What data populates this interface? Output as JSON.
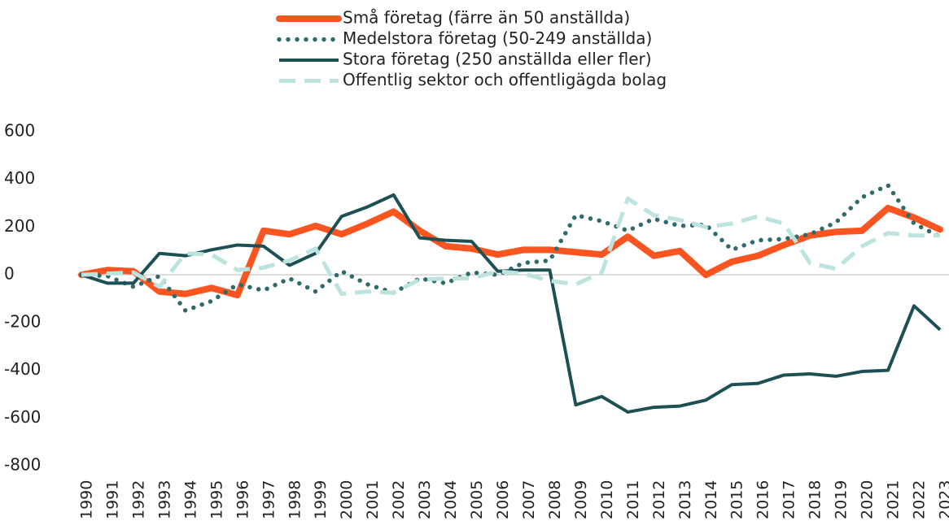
{
  "chart_data": {
    "type": "line",
    "categories": [
      "1990",
      "1991",
      "1992",
      "1993",
      "1994",
      "1995",
      "1996",
      "1997",
      "1998",
      "1999",
      "2000",
      "2001",
      "2002",
      "2003",
      "2004",
      "2005",
      "2006",
      "2007",
      "2008",
      "2009",
      "2010",
      "2011",
      "2012",
      "2013",
      "2014",
      "2015",
      "2016",
      "2017",
      "2018",
      "2019",
      "2020",
      "2021",
      "2022",
      "2023"
    ],
    "series": [
      {
        "name": "Små företag (färre än 50 anställda)",
        "color": "#fa5520",
        "style": "solid-thick",
        "values": [
          0,
          20,
          15,
          -70,
          -80,
          -55,
          -85,
          185,
          170,
          205,
          170,
          215,
          265,
          185,
          120,
          110,
          85,
          105,
          105,
          95,
          85,
          160,
          80,
          100,
          0,
          55,
          80,
          125,
          165,
          180,
          185,
          280,
          240,
          190
        ]
      },
      {
        "name": "Medelstora företag (50-249 anställda)",
        "color": "#2e6b6a",
        "style": "dotted",
        "values": [
          0,
          -5,
          -50,
          -5,
          -150,
          -110,
          -40,
          -65,
          -15,
          -70,
          15,
          -40,
          -75,
          -15,
          -35,
          10,
          0,
          50,
          60,
          250,
          225,
          185,
          235,
          205,
          210,
          105,
          145,
          150,
          170,
          220,
          325,
          375,
          215,
          160
        ]
      },
      {
        "name": "Stora företag (250 anställda eller fler)",
        "color": "#1d5054",
        "style": "solid",
        "values": [
          0,
          -35,
          -35,
          90,
          80,
          105,
          125,
          120,
          40,
          90,
          245,
          285,
          335,
          155,
          145,
          140,
          15,
          20,
          20,
          -545,
          -510,
          -575,
          -555,
          -550,
          -525,
          -460,
          -455,
          -420,
          -415,
          -425,
          -405,
          -400,
          -130,
          -230
        ]
      },
      {
        "name": "Offentlig sektor och offentligägda bolag",
        "color": "#bde3df",
        "style": "dashed",
        "values": [
          0,
          5,
          10,
          -50,
          90,
          85,
          20,
          30,
          60,
          110,
          -80,
          -70,
          -75,
          -20,
          -15,
          -15,
          15,
          5,
          -25,
          -40,
          10,
          320,
          250,
          230,
          200,
          215,
          245,
          215,
          50,
          25,
          120,
          175,
          165,
          165
        ]
      }
    ],
    "ylim": [
      -800,
      600
    ],
    "yticks": [
      -800,
      -600,
      -400,
      -200,
      0,
      200,
      400,
      600
    ],
    "grid": false
  }
}
